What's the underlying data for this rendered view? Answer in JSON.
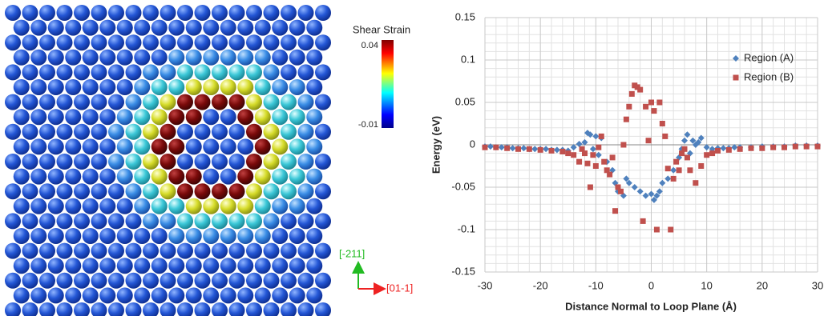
{
  "atom_panel": {
    "colorbar_title": "Shear Strain",
    "colorbar_max_label": "0.04",
    "colorbar_min_label": "-0.01",
    "axis_up_label": "[-211]",
    "axis_right_label": "[01-1]"
  },
  "chart_data": {
    "type": "scatter",
    "xlabel": "Distance Normal to Loop Plane (Å)",
    "ylabel": "Energy (eV)",
    "xlim": [
      -30,
      30
    ],
    "ylim": [
      -0.15,
      0.15
    ],
    "xticks": [
      -30,
      -20,
      -10,
      0,
      10,
      20,
      30
    ],
    "yticks": [
      -0.15,
      -0.1,
      -0.05,
      0,
      0.05,
      0.1,
      0.15
    ],
    "grid": true,
    "legend": "upper right",
    "series": [
      {
        "name": "Region (A)",
        "color": "#4f81bd",
        "marker": "diamond",
        "x": [
          -30,
          -29,
          -28,
          -27,
          -26,
          -25,
          -24,
          -23,
          -22,
          -21,
          -20,
          -19,
          -18,
          -17,
          -16,
          -15,
          -14,
          -13,
          -12,
          -11.5,
          -11,
          -10.5,
          -10,
          -9.5,
          -9,
          -8,
          -7,
          -6.5,
          -6,
          -5,
          -4.5,
          -4,
          -3,
          -2,
          -1,
          0,
          0.5,
          1,
          1.5,
          2,
          3,
          4,
          5,
          5.5,
          6,
          6.5,
          7,
          7.5,
          8,
          8.5,
          9,
          10,
          11,
          12,
          13,
          14,
          15,
          16,
          18,
          20,
          22,
          24,
          26,
          28,
          30
        ],
        "values": [
          -0.002,
          -0.002,
          -0.003,
          -0.003,
          -0.003,
          -0.004,
          -0.004,
          -0.004,
          -0.005,
          -0.005,
          -0.005,
          -0.005,
          -0.006,
          -0.006,
          -0.006,
          -0.007,
          -0.003,
          0.001,
          0.003,
          0.014,
          0.012,
          -0.005,
          0.01,
          -0.012,
          0.008,
          -0.02,
          -0.03,
          -0.045,
          -0.055,
          -0.06,
          -0.04,
          -0.045,
          -0.05,
          -0.055,
          -0.06,
          -0.058,
          -0.065,
          -0.06,
          -0.055,
          -0.045,
          -0.04,
          -0.03,
          -0.015,
          -0.005,
          0.005,
          0.012,
          -0.01,
          0.005,
          0.0,
          0.003,
          0.008,
          -0.003,
          -0.005,
          -0.004,
          -0.004,
          -0.004,
          -0.003,
          -0.003,
          -0.003,
          -0.002,
          -0.002,
          -0.002,
          -0.001,
          -0.001,
          -0.001
        ]
      },
      {
        "name": "Region (B)",
        "color": "#c0504d",
        "marker": "square",
        "x": [
          -30,
          -28,
          -26,
          -24,
          -22,
          -20,
          -18,
          -16,
          -15,
          -14,
          -13,
          -12.5,
          -12,
          -11.5,
          -11,
          -10.5,
          -10,
          -9.5,
          -9,
          -8.5,
          -8,
          -7.5,
          -7,
          -6.5,
          -6,
          -5.5,
          -5,
          -4.5,
          -4,
          -3.5,
          -3,
          -2.5,
          -2,
          -1.5,
          -1,
          -0.5,
          0,
          0.5,
          1,
          1.5,
          2,
          2.5,
          3,
          3.5,
          4,
          4.5,
          5,
          5.5,
          6,
          6.5,
          7,
          8,
          9,
          10,
          11,
          12,
          14,
          16,
          18,
          20,
          22,
          24,
          26,
          28,
          30
        ],
        "values": [
          -0.003,
          -0.003,
          -0.004,
          -0.005,
          -0.005,
          -0.006,
          -0.007,
          -0.008,
          -0.01,
          -0.012,
          -0.02,
          -0.005,
          -0.01,
          -0.022,
          -0.05,
          -0.012,
          -0.025,
          -0.003,
          0.01,
          -0.02,
          -0.03,
          -0.035,
          -0.015,
          -0.078,
          -0.05,
          -0.055,
          0.0,
          0.03,
          0.045,
          0.06,
          0.07,
          0.068,
          0.065,
          -0.09,
          0.045,
          0.005,
          0.05,
          0.04,
          -0.1,
          0.05,
          0.025,
          0.01,
          -0.028,
          -0.1,
          -0.04,
          -0.02,
          -0.03,
          -0.01,
          -0.005,
          -0.015,
          -0.03,
          -0.045,
          -0.025,
          -0.012,
          -0.01,
          -0.007,
          -0.006,
          -0.005,
          -0.004,
          -0.004,
          -0.003,
          -0.003,
          -0.002,
          -0.002,
          -0.002
        ]
      }
    ]
  }
}
